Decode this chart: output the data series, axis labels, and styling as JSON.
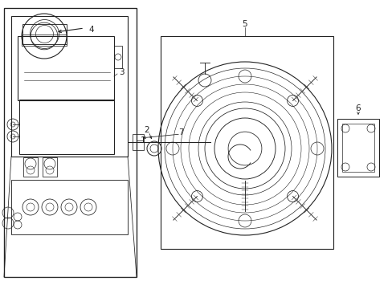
{
  "bg_color": "#ffffff",
  "line_color": "#222222",
  "lw": 0.8,
  "fig_width": 4.89,
  "fig_height": 3.6,
  "dpi": 100,
  "xlim": [
    0,
    489
  ],
  "ylim": [
    0,
    360
  ]
}
